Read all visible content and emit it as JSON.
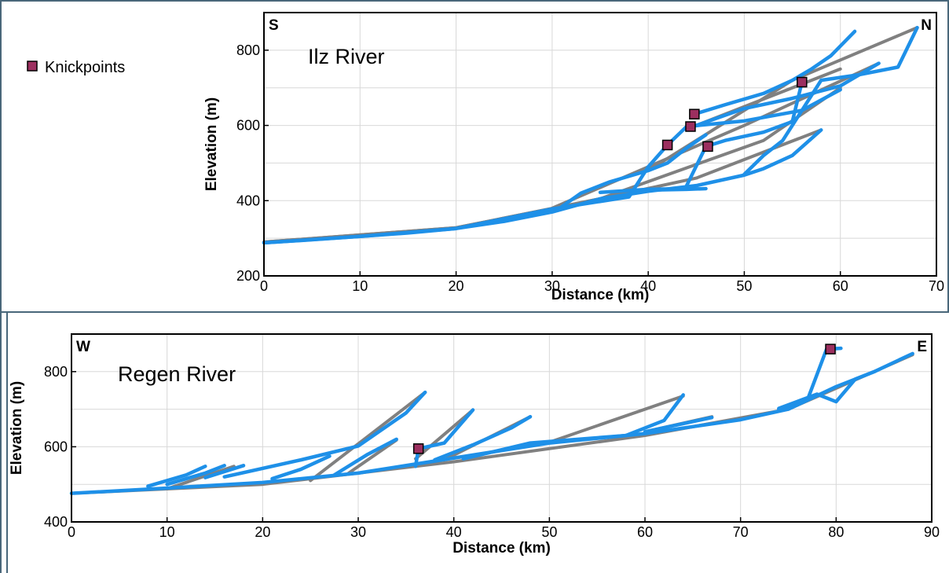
{
  "legend": {
    "label": "Knickpoints",
    "marker_color": "#9c2f5f"
  },
  "colors": {
    "profile": "#1e90e8",
    "trend": "#808080",
    "grid": "#d8d8d8"
  },
  "chart_data": [
    {
      "type": "line",
      "title": "Ilz River",
      "corner_left": "S",
      "corner_right": "N",
      "xlabel": "Distance (km)",
      "ylabel": "Elevation (m)",
      "xlim": [
        0,
        70
      ],
      "ylim": [
        200,
        900
      ],
      "xticks": [
        0,
        10,
        20,
        30,
        40,
        50,
        60,
        70
      ],
      "yticks": [
        200,
        400,
        600,
        800
      ],
      "grid": true,
      "trend_lines": [
        [
          [
            0,
            290
          ],
          [
            20,
            328
          ],
          [
            35,
            405
          ],
          [
            45,
            460
          ],
          [
            58,
            588
          ]
        ],
        [
          [
            0,
            290
          ],
          [
            20,
            328
          ],
          [
            35,
            405
          ],
          [
            52,
            560
          ],
          [
            60,
            700
          ]
        ],
        [
          [
            30,
            380
          ],
          [
            50,
            600
          ],
          [
            64,
            765
          ]
        ],
        [
          [
            40,
            480
          ],
          [
            55,
            720
          ],
          [
            68,
            860
          ]
        ],
        [
          [
            45,
            600
          ],
          [
            60,
            750
          ]
        ]
      ],
      "series": [
        {
          "values": [
            [
              0,
              288
            ],
            [
              5,
              296
            ],
            [
              10,
              305
            ],
            [
              15,
              314
            ],
            [
              20,
              326
            ],
            [
              25,
              345
            ],
            [
              30,
              370
            ],
            [
              35,
              405
            ],
            [
              40,
              425
            ],
            [
              45,
              440
            ],
            [
              50,
              468
            ],
            [
              52,
              485
            ],
            [
              55,
              520
            ],
            [
              58,
              588
            ]
          ]
        },
        {
          "values": [
            [
              0,
              288
            ],
            [
              10,
              305
            ],
            [
              20,
              326
            ],
            [
              30,
              378
            ],
            [
              38,
              410
            ],
            [
              40,
              490
            ],
            [
              42,
              548
            ],
            [
              44,
              597
            ],
            [
              50,
              612
            ],
            [
              56,
              640
            ],
            [
              60,
              695
            ]
          ]
        },
        {
          "values": [
            [
              31,
              384
            ],
            [
              33,
              420
            ],
            [
              36,
              450
            ],
            [
              40,
              480
            ],
            [
              42,
              500
            ],
            [
              44,
              540
            ],
            [
              46,
              575
            ]
          ]
        },
        {
          "values": [
            [
              44.8,
              630
            ],
            [
              48,
              655
            ],
            [
              52,
              685
            ],
            [
              55,
              720
            ],
            [
              57,
              750
            ],
            [
              59,
              785
            ],
            [
              61.5,
              850
            ]
          ]
        },
        {
          "values": [
            [
              45,
              600
            ],
            [
              50,
              645
            ],
            [
              55,
              672
            ],
            [
              60,
              705
            ],
            [
              64,
              765
            ]
          ]
        },
        {
          "values": [
            [
              44,
              440
            ],
            [
              46,
              544
            ],
            [
              48,
              560
            ],
            [
              52,
              582
            ],
            [
              55,
              610
            ],
            [
              56,
              715
            ]
          ]
        },
        {
          "values": [
            [
              50,
              470
            ],
            [
              52,
              520
            ],
            [
              54,
              560
            ],
            [
              56,
              640
            ],
            [
              58,
              720
            ],
            [
              62,
              735
            ],
            [
              66,
              755
            ],
            [
              68,
              860
            ]
          ]
        },
        {
          "values": [
            [
              38,
              427
            ],
            [
              44,
              430
            ],
            [
              46,
              432
            ]
          ]
        },
        {
          "values": [
            [
              35,
              422
            ],
            [
              40,
              430
            ],
            [
              44,
              432
            ]
          ]
        }
      ],
      "knickpoints": [
        [
          42,
          548
        ],
        [
          44.4,
          597
        ],
        [
          44.8,
          630
        ],
        [
          46.2,
          544
        ],
        [
          56,
          715
        ]
      ]
    },
    {
      "type": "line",
      "title": "Regen River",
      "corner_left": "W",
      "corner_right": "E",
      "xlabel": "Distance (km)",
      "ylabel": "Elevation (m)",
      "xlim": [
        0,
        90
      ],
      "ylim": [
        400,
        900
      ],
      "xticks": [
        0,
        10,
        20,
        30,
        40,
        50,
        60,
        70,
        80,
        90
      ],
      "yticks": [
        400,
        600,
        800
      ],
      "grid": true,
      "trend_lines": [
        [
          [
            0,
            476
          ],
          [
            20,
            500
          ],
          [
            40,
            560
          ],
          [
            60,
            630
          ],
          [
            75,
            700
          ],
          [
            88,
            845
          ]
        ],
        [
          [
            10,
            488
          ],
          [
            17,
            548
          ]
        ],
        [
          [
            25,
            510
          ],
          [
            37,
            745
          ]
        ],
        [
          [
            29,
            530
          ],
          [
            34,
            618
          ]
        ],
        [
          [
            36,
            568
          ],
          [
            42,
            698
          ]
        ],
        [
          [
            39,
            565
          ],
          [
            48,
            680
          ]
        ],
        [
          [
            50,
            612
          ],
          [
            64,
            735
          ]
        ],
        [
          [
            60,
            640
          ],
          [
            67,
            680
          ]
        ]
      ],
      "series": [
        {
          "values": [
            [
              0,
              476
            ],
            [
              10,
              490
            ],
            [
              20,
              505
            ],
            [
              30,
              530
            ],
            [
              40,
              570
            ],
            [
              50,
              610
            ],
            [
              60,
              635
            ],
            [
              70,
              672
            ],
            [
              75,
              700
            ],
            [
              80,
              760
            ],
            [
              84,
              800
            ],
            [
              88,
              848
            ]
          ]
        },
        {
          "values": [
            [
              8,
              495
            ],
            [
              12,
              525
            ],
            [
              14,
              548
            ]
          ]
        },
        {
          "values": [
            [
              10,
              500
            ],
            [
              14,
              530
            ],
            [
              16,
              550
            ]
          ]
        },
        {
          "values": [
            [
              14,
              518
            ],
            [
              18,
              550
            ]
          ]
        },
        {
          "values": [
            [
              16,
              520
            ],
            [
              24,
              565
            ],
            [
              30,
              602
            ],
            [
              35,
              690
            ],
            [
              37,
              745
            ]
          ]
        },
        {
          "values": [
            [
              21,
              515
            ],
            [
              24,
              540
            ],
            [
              27,
              575
            ]
          ]
        },
        {
          "values": [
            [
              27.5,
              525
            ],
            [
              31,
              580
            ],
            [
              34,
              620
            ]
          ]
        },
        {
          "values": [
            [
              36,
              548
            ],
            [
              36.3,
              595
            ],
            [
              39,
              610
            ],
            [
              42,
              698
            ]
          ]
        },
        {
          "values": [
            [
              38,
              565
            ],
            [
              42,
              605
            ],
            [
              46,
              650
            ],
            [
              48,
              680
            ]
          ]
        },
        {
          "values": [
            [
              41,
              568
            ],
            [
              48,
              610
            ],
            [
              58,
              630
            ],
            [
              62,
              670
            ],
            [
              64,
              738
            ]
          ]
        },
        {
          "values": [
            [
              60,
              640
            ],
            [
              67,
              678
            ]
          ]
        },
        {
          "values": [
            [
              74,
              700
            ],
            [
              77,
              725
            ],
            [
              79,
              860
            ],
            [
              80.5,
              862
            ]
          ]
        },
        {
          "values": [
            [
              74,
              702
            ],
            [
              78,
              740
            ],
            [
              80,
              720
            ],
            [
              82,
              780
            ],
            [
              84,
              800
            ]
          ]
        }
      ],
      "knickpoints": [
        [
          36.3,
          595
        ],
        [
          79.4,
          860
        ]
      ]
    }
  ]
}
